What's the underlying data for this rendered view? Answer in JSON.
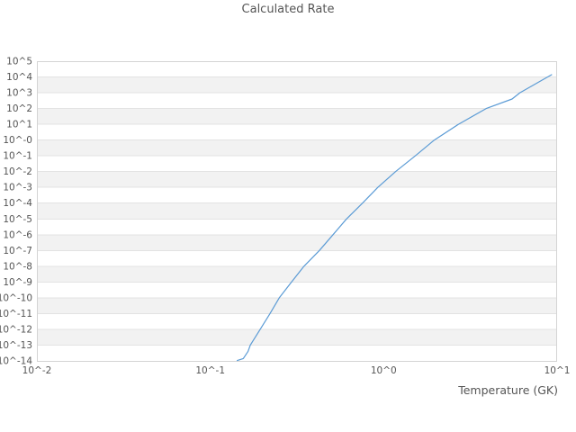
{
  "page": {
    "background": "#ffffff"
  },
  "chart_data": {
    "type": "line",
    "title": "Calculated Rate",
    "xlabel": "Temperature (GK)",
    "ylabel": "",
    "x_scale": "log",
    "y_scale": "log",
    "xlim": [
      0.01,
      10
    ],
    "ylim": [
      1e-14,
      100000.0
    ],
    "grid": "horizontal alternating bands, no vertical gridlines",
    "legend": "none",
    "x_ticks": [
      {
        "value": 0.01,
        "label": "10^-2"
      },
      {
        "value": 0.1,
        "label": "10^-1"
      },
      {
        "value": 1,
        "label": "10^0"
      },
      {
        "value": 10,
        "label": "10^1"
      }
    ],
    "y_ticks": [
      {
        "value": 100000.0,
        "label": "10^5"
      },
      {
        "value": 10000.0,
        "label": "10^4"
      },
      {
        "value": 1000.0,
        "label": "10^3"
      },
      {
        "value": 100.0,
        "label": "10^2"
      },
      {
        "value": 10.0,
        "label": "10^1"
      },
      {
        "value": 1,
        "label": "10^-0"
      },
      {
        "value": 0.1,
        "label": "10^-1"
      },
      {
        "value": 0.01,
        "label": "10^-2"
      },
      {
        "value": 0.001,
        "label": "10^-3"
      },
      {
        "value": 0.0001,
        "label": "10^-4"
      },
      {
        "value": 1e-05,
        "label": "10^-5"
      },
      {
        "value": 1e-06,
        "label": "10^-6"
      },
      {
        "value": 1e-07,
        "label": "10^-7"
      },
      {
        "value": 1e-08,
        "label": "10^-8"
      },
      {
        "value": 1e-09,
        "label": "10^-9"
      },
      {
        "value": 1e-10,
        "label": "10^-10"
      },
      {
        "value": 1e-11,
        "label": "10^-11"
      },
      {
        "value": 1e-12,
        "label": "10^-12"
      },
      {
        "value": 1e-13,
        "label": "10^-13"
      },
      {
        "value": 1e-14,
        "label": "10^-14"
      }
    ],
    "series": [
      {
        "name": "Calculated Rate",
        "color": "#5b9bd5",
        "points": [
          [
            0.143,
            1.05e-14
          ],
          [
            0.155,
            1.4e-14
          ],
          [
            0.165,
            4e-14
          ],
          [
            0.17,
            1e-13
          ],
          [
            0.194,
            1e-12
          ],
          [
            0.221,
            1e-11
          ],
          [
            0.25,
            1e-10
          ],
          [
            0.294,
            1e-09
          ],
          [
            0.347,
            1e-08
          ],
          [
            0.426,
            1e-07
          ],
          [
            0.51,
            1e-06
          ],
          [
            0.61,
            1e-05
          ],
          [
            0.755,
            0.0001
          ],
          [
            0.925,
            0.001
          ],
          [
            1.17,
            0.01
          ],
          [
            1.52,
            0.1
          ],
          [
            1.96,
            1.0
          ],
          [
            2.7,
            10
          ],
          [
            3.9,
            100
          ],
          [
            5.5,
            400
          ],
          [
            6.1,
            1000
          ],
          [
            9.3,
            14000.0
          ]
        ]
      }
    ],
    "colors": {
      "band": "#ffffff",
      "band_alt": "#f2f2f2",
      "gridline": "#e3e3e3",
      "border": "#d4d4d4",
      "text": "#555555",
      "line": "#5b9bd5"
    }
  }
}
